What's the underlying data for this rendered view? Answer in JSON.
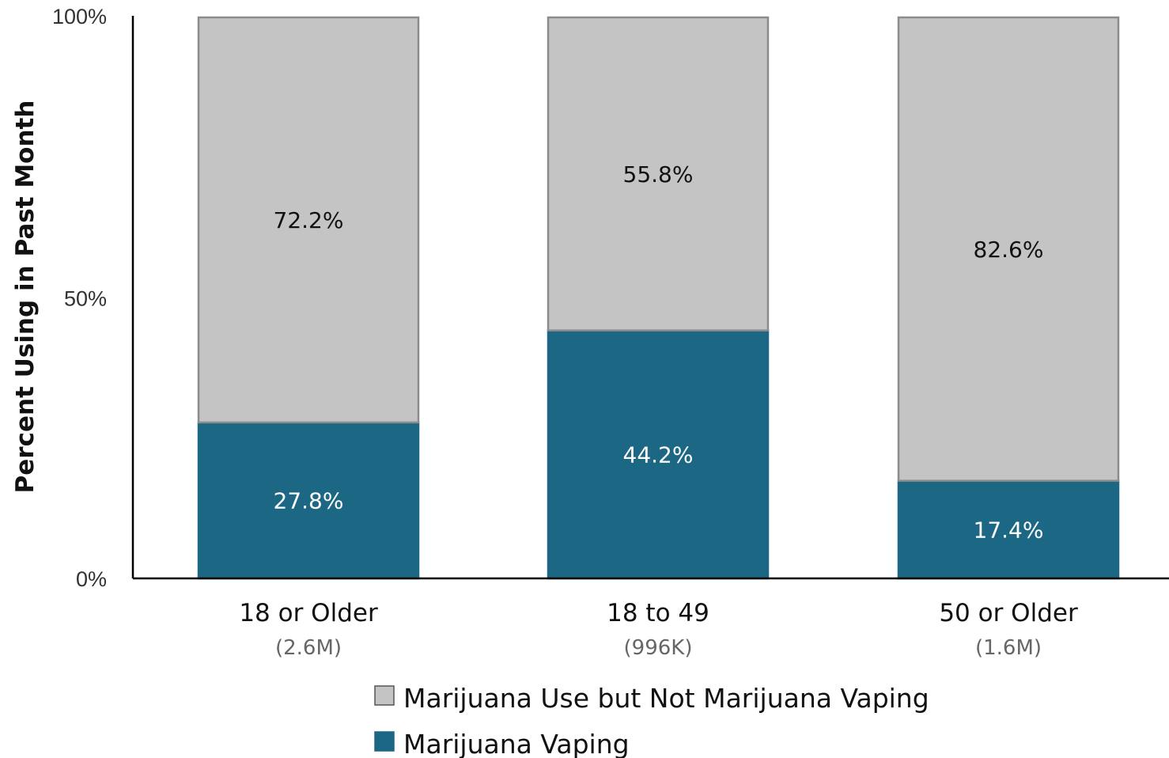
{
  "chart_data": {
    "type": "bar",
    "stacked": true,
    "categories": [
      "18 or Older",
      "18 to 49",
      "50 or Older"
    ],
    "category_sublabels": [
      "(2.6M)",
      "(996K)",
      "(1.6M)"
    ],
    "series": [
      {
        "name": "Marijuana Vaping",
        "values": [
          27.8,
          44.2,
          17.4
        ],
        "labels": [
          "27.8%",
          "44.2%",
          "17.4%"
        ],
        "color": "#1c6784",
        "label_color": "#ffffff"
      },
      {
        "name": "Marijuana Use but Not Marijuana Vaping",
        "values": [
          72.2,
          55.8,
          82.6
        ],
        "labels": [
          "72.2%",
          "55.8%",
          "82.6%"
        ],
        "color": "#c4c4c4",
        "label_color": "#111111"
      }
    ],
    "ylabel": "Percent Using in Past Month",
    "ylim": [
      0,
      100
    ],
    "yticks": [
      0,
      50,
      100
    ],
    "ytick_labels": [
      "0%",
      "50%",
      "100%"
    ],
    "grid": false,
    "legend_position": "bottom",
    "legend_order": [
      "Marijuana Use but Not Marijuana Vaping",
      "Marijuana Vaping"
    ]
  }
}
